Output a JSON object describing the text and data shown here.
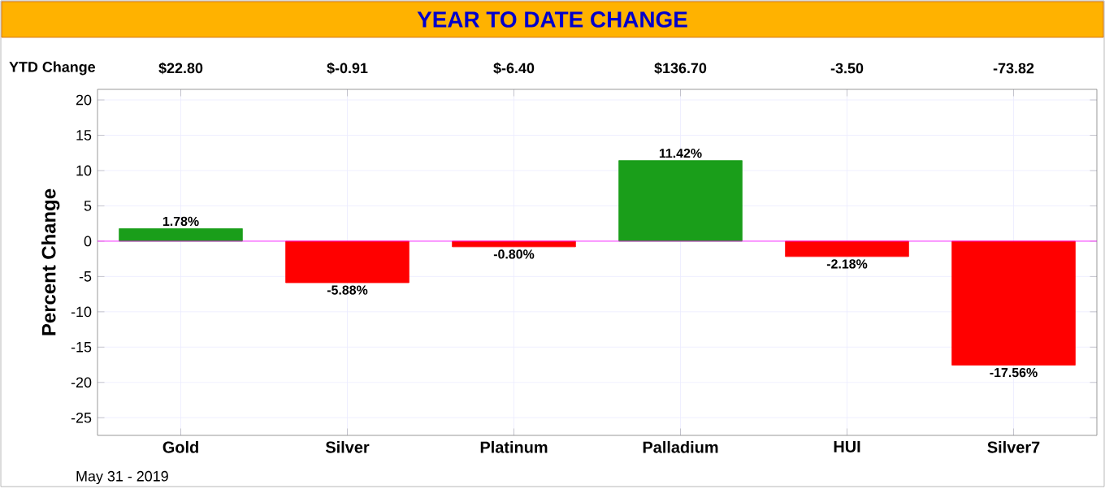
{
  "chart_data": {
    "type": "bar",
    "title": "YEAR TO DATE CHANGE",
    "ylabel": "Percent Change",
    "categories": [
      "Gold",
      "Silver",
      "Platinum",
      "Palladium",
      "HUI",
      "Silver7"
    ],
    "values": [
      1.78,
      -5.88,
      -0.8,
      11.42,
      -2.18,
      -17.56
    ],
    "colors": [
      "#1a9e1a",
      "#ff0000",
      "#ff0000",
      "#1a9e1a",
      "#ff0000",
      "#ff0000"
    ],
    "value_labels": [
      "1.78%",
      "-5.88%",
      "-0.80%",
      "11.42%",
      "-2.18%",
      "-17.56%"
    ],
    "ylim": [
      -27.5,
      21.5
    ],
    "yticks": [
      -25,
      -20,
      -15,
      -10,
      -5,
      0,
      5,
      10,
      15,
      20
    ],
    "grid": true,
    "ref_lines": [
      {
        "axis": "y",
        "value": 0,
        "color": "#ff00ff"
      }
    ],
    "annotations": [
      "YTD Change",
      {
        "text": "$22.80",
        "x": "Gold"
      },
      {
        "text": "$-0.91",
        "x": "Silver"
      },
      {
        "text": "$-6.40",
        "x": "Platinum"
      },
      {
        "text": "$136.70",
        "x": "Palladium"
      },
      {
        "text": "-3.50",
        "x": "HUI"
      },
      {
        "text": "-73.82",
        "x": "Silver7"
      },
      "May 31 - 2019"
    ]
  }
}
